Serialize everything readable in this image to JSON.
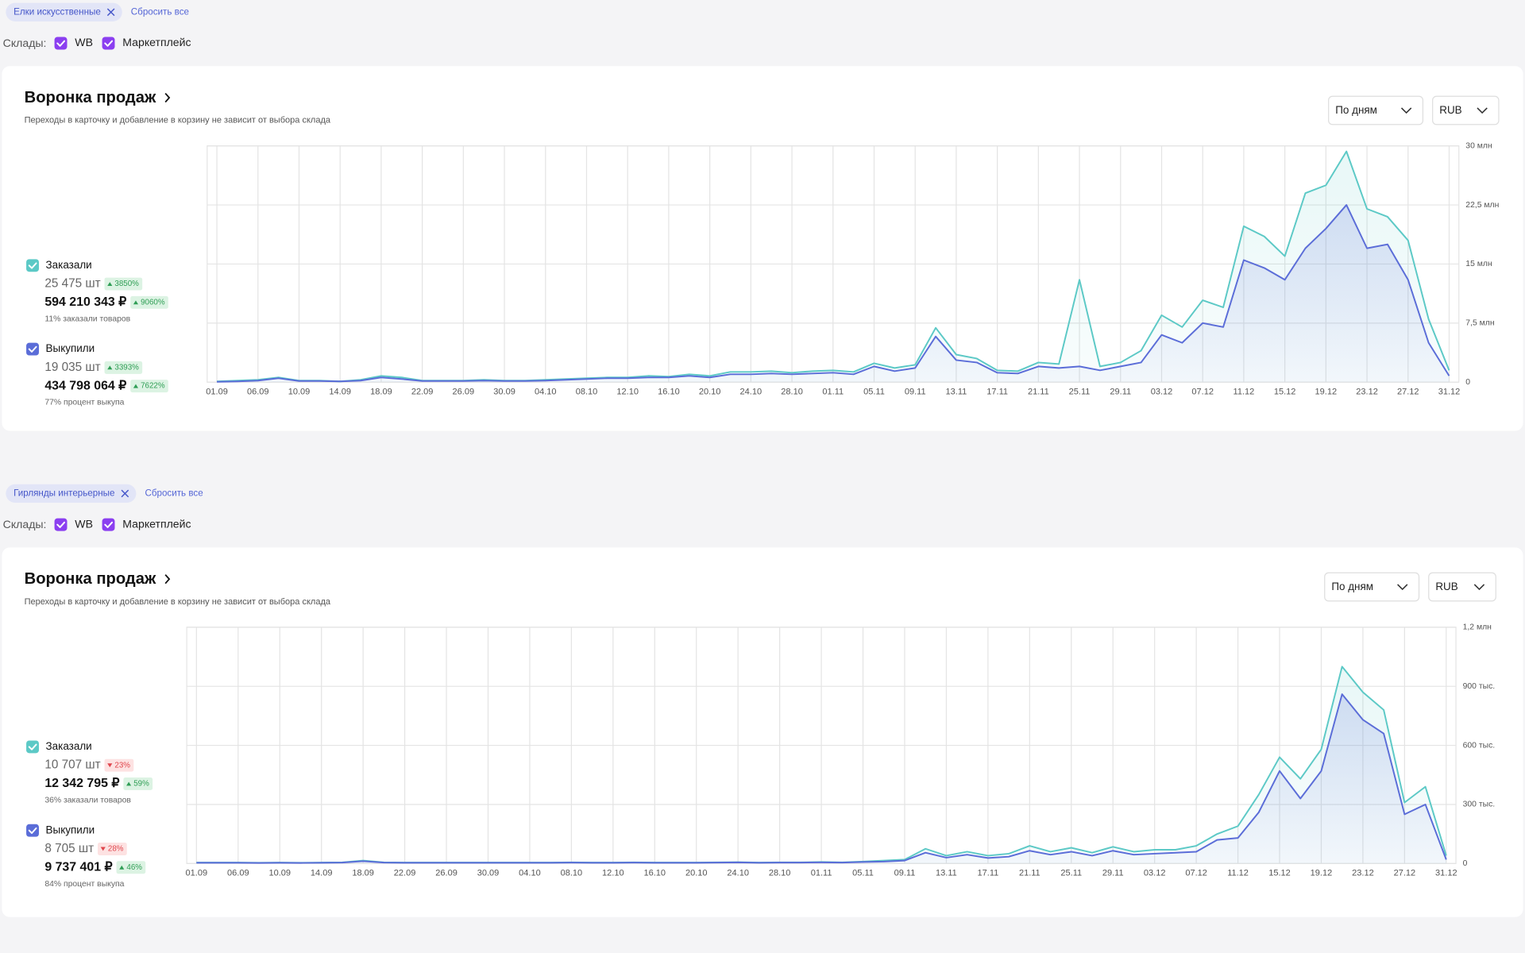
{
  "panels": [
    {
      "filter": "Елки искусственные",
      "reset": "Сбросить все",
      "warehouses_label": "Склады:",
      "warehouses": [
        "WB",
        "Маркетплейс"
      ],
      "title": "Воронка продаж",
      "subtitle": "Переходы в карточку и добавление в корзину не зависит от выбора склада",
      "period": "По дням",
      "currency": "RUB",
      "metrics": [
        {
          "count": "25 475 шт",
          "count_change": "3850%",
          "count_trend": "up",
          "amount": "594 210 343 ₽",
          "amount_change": "9060%",
          "amount_trend": "up",
          "note": "11% заказали товаров"
        },
        {
          "count": "19 035 шт",
          "count_change": "3393%",
          "count_trend": "up",
          "amount": "434 798 064 ₽",
          "amount_change": "7622%",
          "amount_trend": "up",
          "note": "77% процент выкупа"
        }
      ]
    },
    {
      "filter": "Гирлянды интерьерные",
      "reset": "Сбросить все",
      "warehouses_label": "Склады:",
      "warehouses": [
        "WB",
        "Маркетплейс"
      ],
      "title": "Воронка продаж",
      "subtitle": "Переходы в карточку и добавление в корзину не зависит от выбора склада",
      "period": "По дням",
      "currency": "RUB",
      "metrics": [
        {
          "count": "10 707 шт",
          "count_change": "23%",
          "count_trend": "down",
          "amount": "12 342 795 ₽",
          "amount_change": "59%",
          "amount_trend": "up",
          "note": "36% заказали товаров"
        },
        {
          "count": "8 705 шт",
          "count_change": "28%",
          "count_trend": "down",
          "amount": "9 737 401 ₽",
          "amount_change": "46%",
          "amount_trend": "up",
          "note": "84% процент выкупа"
        }
      ]
    }
  ],
  "chart_data": [
    {
      "type": "line",
      "area": true,
      "grid": true,
      "categories": [
        "01.09",
        null,
        "06.09",
        null,
        "10.09",
        null,
        "14.09",
        null,
        "18.09",
        null,
        "22.09",
        null,
        "26.09",
        null,
        "30.09",
        null,
        "04.10",
        null,
        "08.10",
        null,
        "12.10",
        null,
        "16.10",
        null,
        "20.10",
        null,
        "24.10",
        null,
        "28.10",
        null,
        "01.11",
        null,
        "05.11",
        null,
        "09.11",
        null,
        "13.11",
        null,
        "17.11",
        null,
        "21.11",
        null,
        "25.11",
        null,
        "29.11",
        null,
        "03.12",
        null,
        "07.12",
        null,
        "11.12",
        null,
        "15.12",
        null,
        "19.12",
        null,
        "23.12",
        null,
        "27.12",
        null,
        "31.12"
      ],
      "series": [
        {
          "name": "Заказали",
          "color": "#5cc9c6",
          "values": [
            100000,
            200000,
            300000,
            600000,
            200000,
            200000,
            100000,
            300000,
            800000,
            600000,
            200000,
            200000,
            200000,
            300000,
            200000,
            200000,
            300000,
            400000,
            500000,
            600000,
            600000,
            800000,
            700000,
            1000000,
            800000,
            1300000,
            1300000,
            1400000,
            1200000,
            1400000,
            1500000,
            1300000,
            2400000,
            1800000,
            2200000,
            6900000,
            3500000,
            3000000,
            1500000,
            1400000,
            2500000,
            2300000,
            13000000,
            2000000,
            2500000,
            4000000,
            8500000,
            7000000,
            10400000,
            9500000,
            19800000,
            18500000,
            16000000,
            24000000,
            25000000,
            29300000,
            22000000,
            21000000,
            18000000,
            8000000,
            1500000
          ]
        },
        {
          "name": "Выкупили",
          "color": "#5b6dd8",
          "values": [
            50000,
            100000,
            200000,
            500000,
            150000,
            150000,
            100000,
            200000,
            600000,
            400000,
            150000,
            150000,
            150000,
            200000,
            150000,
            150000,
            200000,
            300000,
            400000,
            500000,
            500000,
            600000,
            600000,
            800000,
            600000,
            1000000,
            1000000,
            1100000,
            1000000,
            1100000,
            1200000,
            1000000,
            2000000,
            1400000,
            1800000,
            5800000,
            2800000,
            2500000,
            1200000,
            1100000,
            2000000,
            1800000,
            2000000,
            1500000,
            2000000,
            2500000,
            6000000,
            5000000,
            7500000,
            7000000,
            15500000,
            14500000,
            13000000,
            17000000,
            19500000,
            22500000,
            17000000,
            17500000,
            13000000,
            5000000,
            800000
          ]
        }
      ],
      "ylim": [
        0,
        30000000
      ],
      "yticks": [
        0,
        {
          "value": 7500000,
          "label": "7,5 млн"
        },
        {
          "value": 15000000,
          "label": "15 млн"
        },
        {
          "value": 22500000,
          "label": "22,5 млн"
        },
        {
          "value": 30000000,
          "label": "30 млн"
        }
      ]
    },
    {
      "type": "line",
      "area": true,
      "grid": true,
      "categories": [
        "01.09",
        null,
        "06.09",
        null,
        "10.09",
        null,
        "14.09",
        null,
        "18.09",
        null,
        "22.09",
        null,
        "26.09",
        null,
        "30.09",
        null,
        "04.10",
        null,
        "08.10",
        null,
        "12.10",
        null,
        "16.10",
        null,
        "20.10",
        null,
        "24.10",
        null,
        "28.10",
        null,
        "01.11",
        null,
        "05.11",
        null,
        "09.11",
        null,
        "13.11",
        null,
        "17.11",
        null,
        "21.11",
        null,
        "25.11",
        null,
        "29.11",
        null,
        "03.12",
        null,
        "07.12",
        null,
        "11.12",
        null,
        "15.12",
        null,
        "19.12",
        null,
        "23.12",
        null,
        "27.12",
        null,
        "31.12"
      ],
      "series": [
        {
          "name": "Заказали",
          "color": "#5cc9c6",
          "values": [
            5000,
            5000,
            5000,
            4000,
            5000,
            4000,
            5000,
            6000,
            15000,
            6000,
            5000,
            5000,
            5000,
            5000,
            5000,
            5000,
            5000,
            5000,
            6000,
            5000,
            5000,
            6000,
            5000,
            5000,
            5000,
            6000,
            7000,
            5000,
            6000,
            6000,
            8000,
            6000,
            10000,
            15000,
            20000,
            75000,
            40000,
            60000,
            40000,
            50000,
            90000,
            60000,
            80000,
            55000,
            85000,
            60000,
            70000,
            70000,
            90000,
            150000,
            190000,
            350000,
            540000,
            430000,
            580000,
            1000000,
            870000,
            780000,
            310000,
            390000,
            40000
          ]
        },
        {
          "name": "Выкупили",
          "color": "#5b6dd8",
          "values": [
            4000,
            4000,
            4000,
            3000,
            4000,
            3000,
            4000,
            5000,
            12000,
            5000,
            4000,
            4000,
            4000,
            4000,
            4000,
            4000,
            4000,
            4000,
            5000,
            4000,
            4000,
            5000,
            4000,
            4000,
            4000,
            5000,
            6000,
            4000,
            5000,
            5000,
            6000,
            5000,
            8000,
            10000,
            15000,
            55000,
            30000,
            45000,
            28000,
            35000,
            65000,
            45000,
            60000,
            40000,
            65000,
            45000,
            50000,
            55000,
            60000,
            120000,
            130000,
            260000,
            470000,
            330000,
            470000,
            860000,
            730000,
            660000,
            250000,
            300000,
            20000
          ]
        }
      ],
      "ylim": [
        0,
        1200000
      ],
      "yticks": [
        0,
        {
          "value": 300000,
          "label": "300 тыс."
        },
        {
          "value": 600000,
          "label": "600 тыс."
        },
        {
          "value": 900000,
          "label": "900 тыс."
        },
        {
          "value": 1200000,
          "label": "1,2 млн"
        }
      ]
    }
  ]
}
